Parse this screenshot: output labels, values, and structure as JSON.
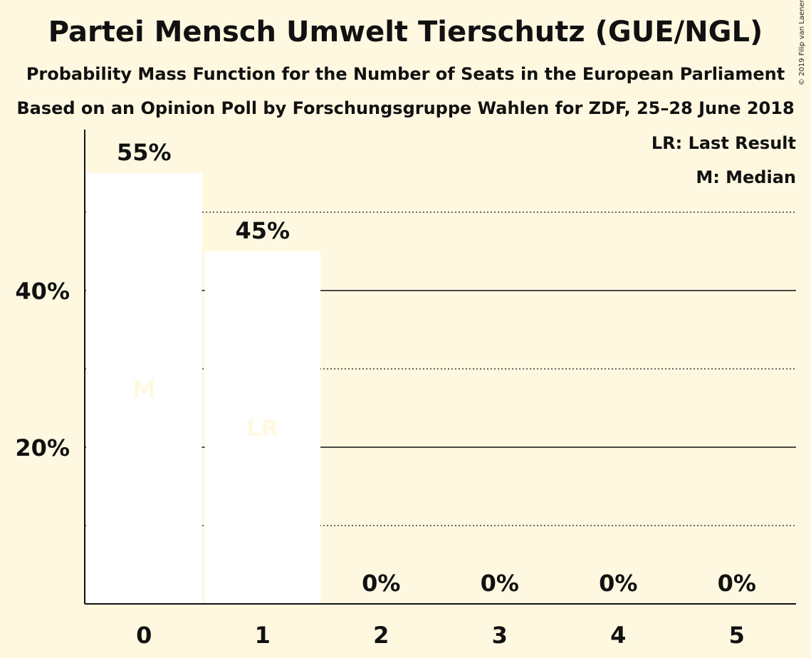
{
  "chart_data": {
    "type": "bar",
    "title": "Partei Mensch Umwelt Tierschutz (GUE/NGL)",
    "subtitle": "Probability Mass Function for the Number of Seats in the European Parliament",
    "subtitle2": "Based on an Opinion Poll by Forschungsgruppe Wahlen for ZDF, 25–28 June 2018",
    "copyright": "© 2019 Filip van Laenen",
    "categories": [
      "0",
      "1",
      "2",
      "3",
      "4",
      "5"
    ],
    "values": [
      55,
      45,
      0,
      0,
      0,
      0
    ],
    "value_labels": [
      "55%",
      "45%",
      "0%",
      "0%",
      "0%",
      "0%"
    ],
    "bar_markers": [
      "M",
      "LR",
      "",
      "",
      "",
      ""
    ],
    "ylim": [
      0,
      60
    ],
    "y_ticks": [
      {
        "value": 20,
        "label": "20%"
      },
      {
        "value": 40,
        "label": "40%"
      }
    ],
    "minor_gridlines": [
      10,
      30,
      50
    ],
    "legend": [
      "LR: Last Result",
      "M: Median"
    ],
    "legend_position": "top-right",
    "colors": {
      "background": "#FFF8E1",
      "bar": "#FFFFFF",
      "marker_text": "#FFF8E1",
      "text": "#111111"
    }
  }
}
